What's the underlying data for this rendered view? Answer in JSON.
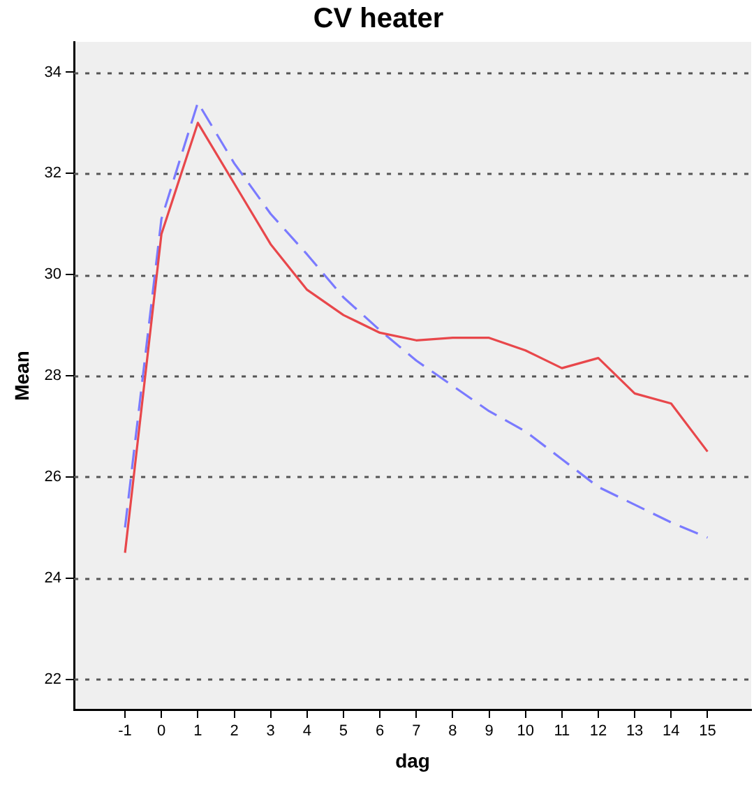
{
  "chart_data": {
    "type": "line",
    "title": "CV heater",
    "xlabel": "dag",
    "ylabel": "Mean",
    "x": [
      -1,
      0,
      1,
      2,
      3,
      4,
      5,
      6,
      7,
      8,
      9,
      10,
      11,
      12,
      13,
      14,
      15
    ],
    "xlim": [
      -2.4,
      16.2
    ],
    "xticks": [
      -1,
      0,
      1,
      2,
      3,
      4,
      5,
      6,
      7,
      8,
      9,
      10,
      11,
      12,
      13,
      14,
      15
    ],
    "ylim": [
      21.4,
      34.6
    ],
    "yticks": [
      22,
      24,
      26,
      28,
      30,
      32,
      34
    ],
    "grid": "y",
    "legend": false,
    "marker": "none",
    "series": [
      {
        "color": "#e8474b",
        "line_style": "solid",
        "values": [
          24.5,
          30.8,
          33.0,
          31.8,
          30.6,
          29.7,
          29.2,
          28.85,
          28.7,
          28.75,
          28.75,
          28.5,
          28.15,
          28.35,
          27.65,
          27.45,
          26.5
        ]
      },
      {
        "color": "#7a7aff",
        "line_style": "dashed",
        "values": [
          25.0,
          31.1,
          33.4,
          32.2,
          31.2,
          30.4,
          29.55,
          28.9,
          28.3,
          27.8,
          27.3,
          26.9,
          26.35,
          25.8,
          25.45,
          25.1,
          24.8
        ]
      }
    ]
  }
}
